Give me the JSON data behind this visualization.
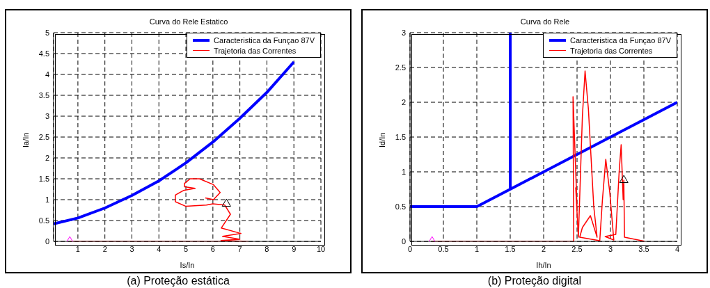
{
  "chart_data": [
    {
      "type": "line",
      "title": "Curva do Rele Estatico",
      "xlabel": "Is/In",
      "ylabel": "Ia/In",
      "annotations": [
        "(a) Proteção estática"
      ],
      "xlim": [
        0.1,
        10
      ],
      "ylim": [
        0,
        5
      ],
      "xticks": [
        1,
        2,
        3,
        4,
        5,
        6,
        7,
        8,
        9,
        10
      ],
      "yticks": [
        0,
        0.5,
        1,
        1.5,
        2,
        2.5,
        3,
        3.5,
        4,
        4.5,
        5
      ],
      "grid": true,
      "legend": "top right",
      "marker": "none",
      "series": [
        {
          "name": "Caracteristica da Funçao 87V",
          "color": "#0000ff",
          "x": [
            0.1,
            1,
            2,
            3,
            4,
            5,
            6,
            7,
            8,
            9
          ],
          "values": [
            0.42,
            0.56,
            0.8,
            1.1,
            1.45,
            1.88,
            2.38,
            2.95,
            3.57,
            4.3
          ]
        },
        {
          "name": "Trajetoria das Correntes",
          "color": "#ff0000",
          "x": [
            0.7,
            7.3,
            6.3,
            7.0,
            6.36,
            7.04,
            6.31,
            6.65,
            6.44,
            6.0,
            5.76,
            5.0,
            4.61,
            4.61,
            4.91,
            5.34,
            4.95,
            4.95,
            5.16,
            5.5,
            6.02,
            6.27,
            6.02,
            5.72
          ],
          "values": [
            0,
            0,
            0.02,
            0.05,
            0.12,
            0.19,
            0.32,
            0.65,
            0.87,
            0.9,
            0.87,
            0.84,
            0.95,
            1.11,
            1.22,
            1.27,
            1.31,
            1.39,
            1.5,
            1.5,
            1.36,
            1.17,
            1.0,
            1.04
          ]
        },
        {
          "type": "scatter",
          "marker": "triangle",
          "color": "#ff00ff",
          "x": [
            0.7
          ],
          "values": [
            0
          ]
        },
        {
          "type": "scatter",
          "marker": "triangle",
          "color": "#000000",
          "x": [
            6.5
          ],
          "values": [
            0.9
          ]
        }
      ]
    },
    {
      "type": "line",
      "title": "Curva do Rele",
      "xlabel": "Ih/In",
      "ylabel": "Id/In",
      "annotations": [
        "(b) Proteção digital"
      ],
      "xlim": [
        0,
        4
      ],
      "ylim": [
        0,
        3
      ],
      "xticks": [
        0,
        0.5,
        1,
        1.5,
        2,
        2.5,
        3,
        3.5,
        4
      ],
      "yticks": [
        0,
        0.5,
        1,
        1.5,
        2,
        2.5,
        3
      ],
      "grid": true,
      "legend": "top right",
      "marker": "none",
      "series": [
        {
          "name": "Caracteristica da Funçao 87V",
          "color": "#0000ff",
          "x": [
            0,
            1,
            1.5,
            1.5,
            1.5,
            4
          ],
          "values": [
            0.5,
            0.5,
            0.75,
            3,
            0.75,
            2
          ]
        },
        {
          "name": "Trajetoria das Correntes",
          "color": "#ff0000",
          "x": [
            0.33,
            2.45,
            2.44,
            2.5,
            2.48,
            2.52,
            2.58,
            2.62,
            2.67,
            2.75,
            2.8,
            2.7,
            2.58,
            2.54,
            2.84,
            2.88,
            2.93,
            2.99,
            3.05,
            2.92,
            3.08,
            3.13,
            3.16,
            3.19,
            3.2,
            3.21,
            3.52
          ],
          "values": [
            0,
            0,
            2.08,
            0.48,
            0.77,
            0.06,
            1.8,
            2.45,
            1.9,
            0.5,
            0.06,
            0.37,
            0.2,
            0.06,
            0.01,
            0.6,
            1.18,
            0.7,
            0.02,
            0.07,
            0.1,
            1.0,
            1.39,
            0.6,
            0.88,
            0.06,
            0
          ]
        },
        {
          "type": "scatter",
          "marker": "triangle",
          "color": "#ff00ff",
          "x": [
            0.33
          ],
          "values": [
            0
          ]
        },
        {
          "type": "scatter",
          "marker": "triangle",
          "color": "#000000",
          "x": [
            3.2
          ],
          "values": [
            0.88
          ]
        }
      ]
    }
  ]
}
